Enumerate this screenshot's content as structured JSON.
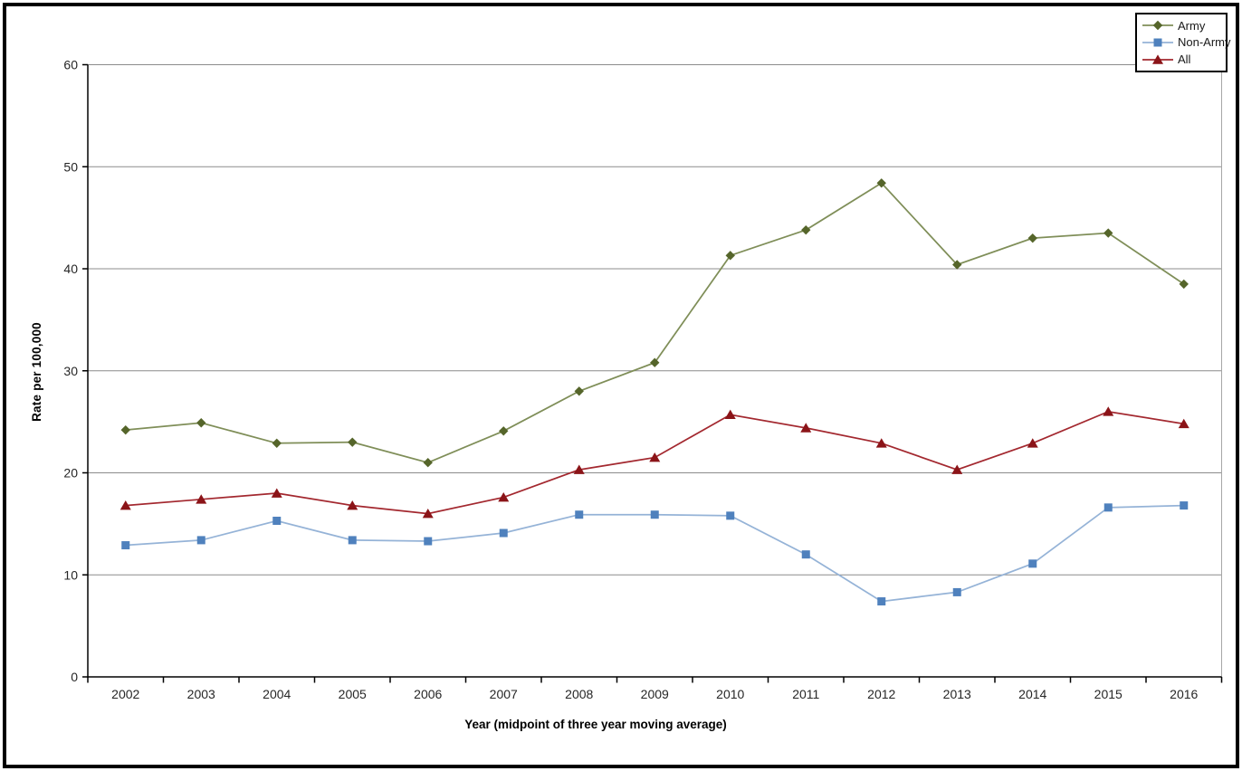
{
  "colors": {
    "background": "#ffffff",
    "frame_border": "#000000",
    "gridline": "#8c8c8c",
    "plot_right_border": "#a6a6a6",
    "axis": "#000000",
    "tick_text": "#262626"
  },
  "legend": {
    "position": "top-right",
    "items": [
      "Army",
      "Non-Army",
      "All"
    ]
  },
  "chart_data": {
    "type": "line",
    "title": "",
    "xlabel": "Year (midpoint of three year moving average)",
    "ylabel": "Rate per 100,000",
    "x": [
      2002,
      2003,
      2004,
      2005,
      2006,
      2007,
      2008,
      2009,
      2010,
      2011,
      2012,
      2013,
      2014,
      2015,
      2016
    ],
    "ylim": [
      0,
      60
    ],
    "ytick_step": 10,
    "yticks": [
      0,
      10,
      20,
      30,
      40,
      50,
      60
    ],
    "grid": true,
    "legend_position": "top-right",
    "series": [
      {
        "name": "Army",
        "marker": "diamond",
        "line_color": "#7f8e58",
        "marker_color": "#55652a",
        "values": [
          24.2,
          24.9,
          22.9,
          23.0,
          21.0,
          24.1,
          28.0,
          30.8,
          41.3,
          43.8,
          48.4,
          40.4,
          43.0,
          43.5,
          38.5
        ]
      },
      {
        "name": "Non-Army",
        "marker": "square",
        "line_color": "#95b3d7",
        "marker_color": "#4f81bd",
        "values": [
          12.9,
          13.4,
          15.3,
          13.4,
          13.3,
          14.1,
          15.9,
          15.9,
          15.8,
          12.0,
          7.4,
          8.3,
          11.1,
          16.6,
          16.8
        ]
      },
      {
        "name": "All",
        "marker": "triangle",
        "line_color": "#a3282f",
        "marker_color": "#8b1418",
        "values": [
          16.8,
          17.4,
          18.0,
          16.8,
          16.0,
          17.6,
          20.3,
          21.5,
          25.7,
          24.4,
          22.9,
          20.3,
          22.9,
          26.0,
          24.8
        ]
      }
    ]
  }
}
